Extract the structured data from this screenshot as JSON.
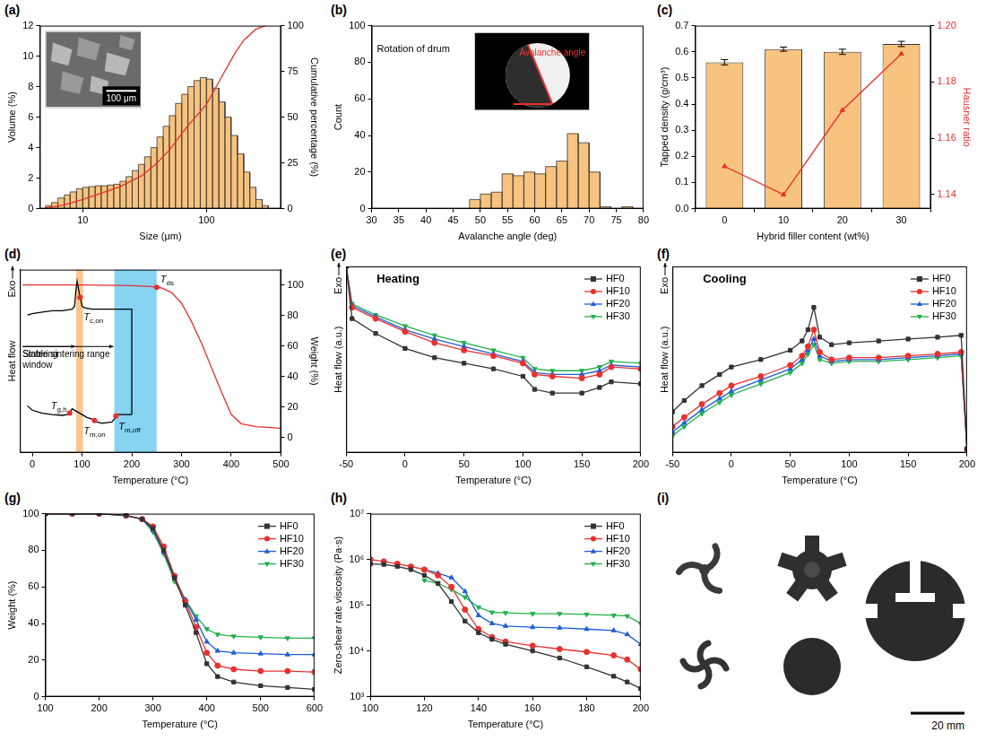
{
  "chart_data": [
    {
      "panel": "(a)",
      "type": "histogram",
      "x_label": "Size (μm)",
      "y_label": "Volume (%)",
      "y2_label": "Cumulative percentage (%)",
      "log": "x",
      "grid": false,
      "color": "#f8c37f",
      "bins": [
        5.0,
        5.6,
        6.3,
        7.1,
        7.9,
        8.9,
        10,
        11.2,
        12.6,
        14.1,
        15.8,
        17.8,
        20,
        22.4,
        25.1,
        28.2,
        31.6,
        35.5,
        39.8,
        44.7,
        50.1,
        56.2,
        63.1,
        70.8,
        79.4,
        89.1,
        100,
        112,
        126,
        141,
        158,
        178,
        200,
        224,
        251,
        282,
        316
      ],
      "values": [
        0.2,
        0.4,
        0.7,
        0.9,
        1.1,
        1.3,
        1.4,
        1.45,
        1.5,
        1.5,
        1.55,
        1.6,
        1.8,
        2.1,
        2.5,
        2.9,
        3.4,
        4.0,
        4.7,
        5.4,
        6.1,
        6.9,
        7.5,
        8.0,
        8.4,
        8.6,
        8.5,
        7.9,
        7.0,
        6.0,
        4.8,
        3.6,
        2.4,
        1.4,
        0.6,
        0.2
      ],
      "xlim": [
        4.5,
        400
      ],
      "xticks": [
        10,
        100
      ],
      "ylim": [
        0,
        12
      ],
      "yticks": [
        0,
        2,
        4,
        6,
        8,
        10,
        12
      ],
      "y2lim": [
        0,
        100
      ],
      "y2ticks": [
        0,
        25,
        50,
        75,
        100
      ],
      "series": [
        {
          "type": "line",
          "color": "#e8312f",
          "axis": "y2",
          "x": [
            5,
            7,
            10,
            15,
            20,
            30,
            40,
            50,
            70,
            100,
            130,
            170,
            200,
            250,
            300
          ],
          "values": [
            0.5,
            2,
            5,
            9,
            12,
            18,
            25,
            32,
            45,
            57,
            71,
            85,
            92,
            98,
            100
          ]
        }
      ],
      "inset": {
        "scale_bar": "100 μm"
      }
    },
    {
      "panel": "(b)",
      "type": "histogram",
      "x_label": "Avalanche angle (deg)",
      "y_label": "Count",
      "grid": false,
      "color": "#f8c37f",
      "bins": [
        48,
        50,
        52,
        54,
        56,
        58,
        60,
        62,
        64,
        66,
        68,
        70,
        72,
        74,
        76,
        78
      ],
      "values": [
        5,
        8,
        9,
        19,
        18,
        20,
        19,
        23,
        26,
        41,
        36,
        20,
        1,
        0,
        1
      ],
      "xlim": [
        30,
        80
      ],
      "xticks": [
        30,
        35,
        40,
        45,
        50,
        55,
        60,
        65,
        70,
        75,
        80
      ],
      "ylim": [
        0,
        100
      ],
      "yticks": [
        0,
        20,
        40,
        60,
        80,
        100
      ],
      "inset": {
        "note": "Rotation of drum",
        "angle_label": "Avalanche angle"
      }
    },
    {
      "panel": "(c)",
      "type": "bar",
      "x_label": "Hybrid filler content (wt%)",
      "y_label": "Tapped density (g/cm³)",
      "y2_label": "Hausner ratio",
      "grid": false,
      "color": "#f8c37f",
      "categories": [
        "0",
        "10",
        "20",
        "30"
      ],
      "values": [
        0.56,
        0.61,
        0.6,
        0.63
      ],
      "errors": [
        0.01,
        0.008,
        0.01,
        0.01
      ],
      "ylim": [
        0,
        0.7
      ],
      "yticks": [
        {
          "value": 0,
          "label": "0.0"
        },
        0.1,
        0.2,
        0.3,
        0.4,
        0.5,
        0.6,
        0.7
      ],
      "y2lim": [
        1.135,
        1.2
      ],
      "y2ticks": [
        1.14,
        1.16,
        1.18,
        {
          "value": 1.2,
          "label": "1.20"
        }
      ],
      "series": [
        {
          "type": "line",
          "color": "#e8312f",
          "axis": "y2",
          "marker": "triangle",
          "values": [
            1.15,
            1.14,
            1.17,
            1.19
          ]
        }
      ]
    },
    {
      "panel": "(d)",
      "type": "line",
      "x_label": "Temperature (°C)",
      "y_label": "Heat flow",
      "y2_label": "Weight (%)",
      "exo_label": "Exo",
      "grid": false,
      "xlim": [
        -25,
        500
      ],
      "xticks": [
        0,
        100,
        200,
        300,
        400,
        500
      ],
      "ylim": [
        -20,
        105
      ],
      "yticks": [],
      "y2lim": [
        -10,
        110
      ],
      "y2ticks": [
        0,
        20,
        40,
        60,
        80,
        100
      ],
      "series": [
        {
          "type": "line",
          "color": "#000000",
          "x": [
            -10,
            0,
            20,
            40,
            60,
            70,
            75,
            80,
            90,
            100,
            110,
            120,
            130,
            140,
            150,
            160,
            165,
            170,
            180,
            200
          ],
          "values": [
            12,
            9,
            7,
            6,
            5.5,
            6,
            7,
            10,
            8,
            6,
            4,
            3,
            1,
            0,
            0.5,
            1,
            3,
            6,
            6,
            6
          ]
        },
        {
          "type": "line",
          "color": "#000000",
          "x": [
            200,
            200,
            180,
            150,
            120,
            105,
            100,
            95,
            90,
            88,
            85,
            80,
            60,
            40,
            20,
            0,
            -10
          ],
          "values": [
            6,
            78,
            78,
            78,
            78,
            79,
            80,
            88,
            97,
            92,
            80,
            78,
            77,
            77,
            76,
            75,
            74
          ]
        },
        {
          "type": "line",
          "color": "#e8312f",
          "axis": "y2",
          "x": [
            -20,
            0,
            100,
            200,
            240,
            260,
            280,
            300,
            320,
            340,
            360,
            380,
            400,
            420,
            450,
            500
          ],
          "values": [
            100,
            100,
            100,
            99.5,
            99,
            98,
            95,
            88,
            76,
            62,
            46,
            30,
            15,
            9,
            7,
            6
          ]
        }
      ],
      "bands": [
        {
          "range": [
            88,
            102
          ],
          "color": "#f9c68f",
          "label": "Sintering window"
        },
        {
          "range": [
            165,
            250
          ],
          "color": "#86d3f2",
          "label": "Stable sintering range"
        }
      ],
      "annotations": [
        {
          "text": "T",
          "sub": "ds",
          "x": 250,
          "y": 98.5,
          "axis": "y2",
          "color": "#e8312f",
          "marker": "circle"
        },
        {
          "text": "T",
          "sub": "c,on",
          "x": 96,
          "y": 86,
          "color": "#e8312f",
          "marker": "circle"
        },
        {
          "text": "T",
          "sub": "g,h",
          "x": 75,
          "y": 7,
          "color": "#e8312f",
          "marker": "circle"
        },
        {
          "text": "T",
          "sub": "m,on",
          "x": 125,
          "y": 2,
          "color": "#e8312f",
          "marker": "circle"
        },
        {
          "text": "T",
          "sub": "m,off",
          "x": 168,
          "y": 5,
          "color": "#e8312f",
          "marker": "circle"
        }
      ]
    },
    {
      "panel": "(e)",
      "type": "line",
      "title": "Heating",
      "x_label": "Temperature (°C)",
      "y_label": "Heat flow (a.u.)",
      "exo_label": "Exo",
      "grid": false,
      "legend": "upper right",
      "xlim": [
        -50,
        200
      ],
      "xticks": [
        -50,
        0,
        50,
        100,
        150,
        200
      ],
      "ylim": [
        0,
        100
      ],
      "yticks": [],
      "x": [
        -50,
        -45,
        -25,
        0,
        25,
        50,
        75,
        100,
        110,
        125,
        150,
        165,
        175,
        200
      ],
      "series": [
        {
          "name": "HF0",
          "color": "#333333",
          "marker": "square",
          "values": [
            100,
            72,
            64,
            56,
            51,
            48,
            45,
            41,
            34,
            32,
            32,
            35,
            38,
            37
          ]
        },
        {
          "name": "HF10",
          "color": "#e8312f",
          "marker": "circle",
          "values": [
            100,
            78,
            72,
            65,
            59,
            55,
            52,
            48,
            42,
            41,
            40,
            42,
            46,
            45
          ]
        },
        {
          "name": "HF20",
          "color": "#1f5fd6",
          "marker": "triangle",
          "values": [
            100,
            79,
            73,
            66,
            61,
            57,
            53,
            49,
            43,
            42,
            42,
            44,
            47,
            46
          ]
        },
        {
          "name": "HF30",
          "color": "#22b14c",
          "marker": "triangle_down",
          "values": [
            100,
            80,
            74,
            68,
            63,
            59,
            55,
            51,
            45,
            44,
            44,
            46,
            49,
            48
          ]
        }
      ]
    },
    {
      "panel": "(f)",
      "type": "line",
      "title": "Cooling",
      "x_label": "Temperature (°C)",
      "y_label": "Heat flow (a.u.)",
      "exo_label": "Exo",
      "grid": false,
      "legend": "upper right",
      "xlim": [
        -50,
        200
      ],
      "xticks": [
        -50,
        0,
        50,
        100,
        150,
        200
      ],
      "ylim": [
        0,
        100
      ],
      "yticks": [],
      "x": [
        -50,
        -40,
        -25,
        -10,
        0,
        25,
        50,
        60,
        65,
        70,
        75,
        85,
        100,
        125,
        150,
        175,
        195,
        200
      ],
      "series": [
        {
          "name": "HF0",
          "color": "#333333",
          "marker": "square",
          "values": [
            22,
            28,
            36,
            42,
            46,
            50,
            55,
            60,
            66,
            78,
            62,
            58,
            59,
            60,
            61,
            62,
            63,
            2
          ]
        },
        {
          "name": "HF10",
          "color": "#e8312f",
          "marker": "circle",
          "values": [
            14,
            19,
            26,
            32,
            36,
            41,
            47,
            52,
            57,
            66,
            54,
            50,
            51,
            51,
            52,
            53,
            54,
            2
          ]
        },
        {
          "name": "HF20",
          "color": "#1f5fd6",
          "marker": "triangle",
          "values": [
            11,
            16,
            23,
            29,
            33,
            39,
            45,
            50,
            55,
            61,
            52,
            49,
            50,
            50,
            51,
            52,
            53,
            2
          ]
        },
        {
          "name": "HF30",
          "color": "#22b14c",
          "marker": "triangle_down",
          "values": [
            9,
            14,
            21,
            27,
            31,
            37,
            43,
            48,
            53,
            58,
            50,
            48,
            49,
            49,
            50,
            51,
            52,
            2
          ]
        }
      ]
    },
    {
      "panel": "(g)",
      "type": "line",
      "x_label": "Temperature (°C)",
      "y_label": "Weight (%)",
      "grid": false,
      "legend": "upper right",
      "xlim": [
        100,
        600
      ],
      "xticks": [
        100,
        200,
        300,
        400,
        500,
        600
      ],
      "ylim": [
        0,
        100
      ],
      "yticks": [
        0,
        20,
        40,
        60,
        80,
        100
      ],
      "x": [
        100,
        150,
        200,
        250,
        280,
        300,
        320,
        340,
        360,
        380,
        400,
        420,
        450,
        500,
        550,
        600
      ],
      "series": [
        {
          "name": "HF0",
          "color": "#333333",
          "marker": "square",
          "values": [
            100,
            100,
            100,
            99,
            97,
            92,
            80,
            65,
            50,
            35,
            18,
            11,
            8,
            6,
            5,
            4
          ]
        },
        {
          "name": "HF10",
          "color": "#e8312f",
          "marker": "circle",
          "values": [
            100,
            100,
            100,
            99,
            97,
            93,
            82,
            66,
            52,
            38,
            24,
            17,
            15,
            14,
            14,
            13.5
          ]
        },
        {
          "name": "HF20",
          "color": "#1f5fd6",
          "marker": "triangle",
          "values": [
            100,
            100,
            100,
            99,
            97,
            91,
            79,
            65,
            53,
            42,
            30,
            25,
            24,
            23.5,
            23,
            23
          ]
        },
        {
          "name": "HF30",
          "color": "#22b14c",
          "marker": "triangle_down",
          "values": [
            100,
            100,
            100,
            99,
            97,
            90,
            78,
            63,
            53,
            44,
            37,
            34,
            33,
            32.5,
            32,
            32
          ]
        }
      ]
    },
    {
      "panel": "(h)",
      "type": "line",
      "x_label": "Temperature (°C)",
      "y_label": "Zero-shear rate viscosity (Pa·s)",
      "log": "y",
      "grid": false,
      "legend": "upper right",
      "xlim": [
        100,
        200
      ],
      "xticks": [
        100,
        120,
        140,
        160,
        180,
        200
      ],
      "ylim": [
        1000,
        10000000
      ],
      "yticks": [
        {
          "value": 1000,
          "label": "10³"
        },
        {
          "value": 10000,
          "label": "10⁴"
        },
        {
          "value": 100000,
          "label": "10⁵"
        },
        {
          "value": 1000000,
          "label": "10⁶"
        },
        {
          "value": 10000000,
          "label": "10⁷"
        }
      ],
      "x": [
        100,
        105,
        110,
        115,
        120,
        125,
        130,
        135,
        140,
        145,
        150,
        160,
        170,
        180,
        190,
        195,
        200
      ],
      "series": [
        {
          "name": "HF0",
          "color": "#333333",
          "marker": "square",
          "values": [
            800000,
            780000,
            700000,
            600000,
            450000,
            300000,
            120000,
            45000,
            25000,
            18000,
            14000,
            10000,
            7000,
            4500,
            2800,
            2100,
            1500
          ]
        },
        {
          "name": "HF10",
          "color": "#e8312f",
          "marker": "circle",
          "values": [
            1000000,
            900000,
            800000,
            700000,
            600000,
            450000,
            250000,
            80000,
            30000,
            20000,
            16000,
            13000,
            11000,
            9500,
            8000,
            6500,
            4000
          ]
        },
        {
          "name": "HF20",
          "color": "#1f5fd6",
          "marker": "triangle",
          "values": [
            null,
            null,
            null,
            null,
            600000,
            500000,
            400000,
            200000,
            60000,
            40000,
            35000,
            33000,
            32000,
            30000,
            28000,
            23000,
            14000
          ]
        },
        {
          "name": "HF30",
          "color": "#22b14c",
          "marker": "triangle_down",
          "values": [
            null,
            null,
            null,
            null,
            350000,
            300000,
            220000,
            150000,
            90000,
            70000,
            68000,
            65000,
            65000,
            63000,
            60000,
            58000,
            40000
          ]
        }
      ]
    }
  ],
  "photo": {
    "panel": "(i)",
    "scale_bar": "20 mm"
  }
}
